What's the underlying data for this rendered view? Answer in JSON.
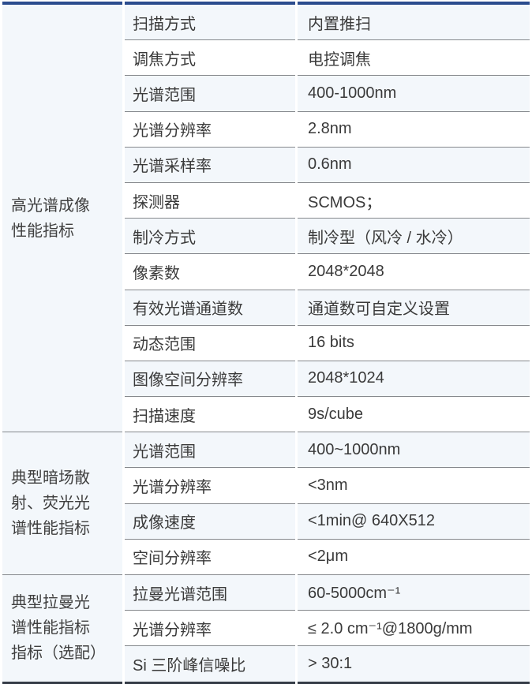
{
  "table": {
    "accent_color": "#2b4c8e",
    "bottom_border_color": "#353c47",
    "row_tint_color": "#f3f7fb",
    "rule_color": "#85888c",
    "sections": [
      {
        "category": "高光谱成像\n性能指标",
        "rows": [
          {
            "param": "扫描方式",
            "value": "内置推扫"
          },
          {
            "param": "调焦方式",
            "value": "电控调焦"
          },
          {
            "param": "光谱范围",
            "value": "400-1000nm"
          },
          {
            "param": "光谱分辨率",
            "value": "2.8nm"
          },
          {
            "param": "光谱采样率",
            "value": "0.6nm"
          },
          {
            "param": "探测器",
            "value": "SCMOS；"
          },
          {
            "param": "制冷方式",
            "value": "制冷型（风冷 / 水冷）"
          },
          {
            "param": "像素数",
            "value": "2048*2048"
          },
          {
            "param": "有效光谱通道数",
            "value": "通道数可自定义设置"
          },
          {
            "param": "动态范围",
            "value": "16 bits"
          },
          {
            "param": "图像空间分辨率",
            "value": "2048*1024"
          },
          {
            "param": "扫描速度",
            "value": "9s/cube"
          }
        ]
      },
      {
        "category": "典型暗场散\n射、荧光光\n谱性能指标",
        "rows": [
          {
            "param": "光谱范围",
            "value": "400~1000nm"
          },
          {
            "param": "光谱分辨率",
            "value": "<3nm"
          },
          {
            "param": "成像速度",
            "value": "<1min@ 640X512"
          },
          {
            "param": "空间分辨率",
            "value": "<2μm"
          }
        ]
      },
      {
        "category": "典型拉曼光\n谱性能指标\n指标（选配）",
        "rows": [
          {
            "param": "拉曼光谱范围",
            "value": "60-5000cm⁻¹"
          },
          {
            "param": "光谱分辨率",
            "value": "≤ 2.0 cm⁻¹@1800g/mm"
          },
          {
            "param": "Si 三阶峰信噪比",
            "value": "> 30:1"
          }
        ]
      }
    ]
  }
}
